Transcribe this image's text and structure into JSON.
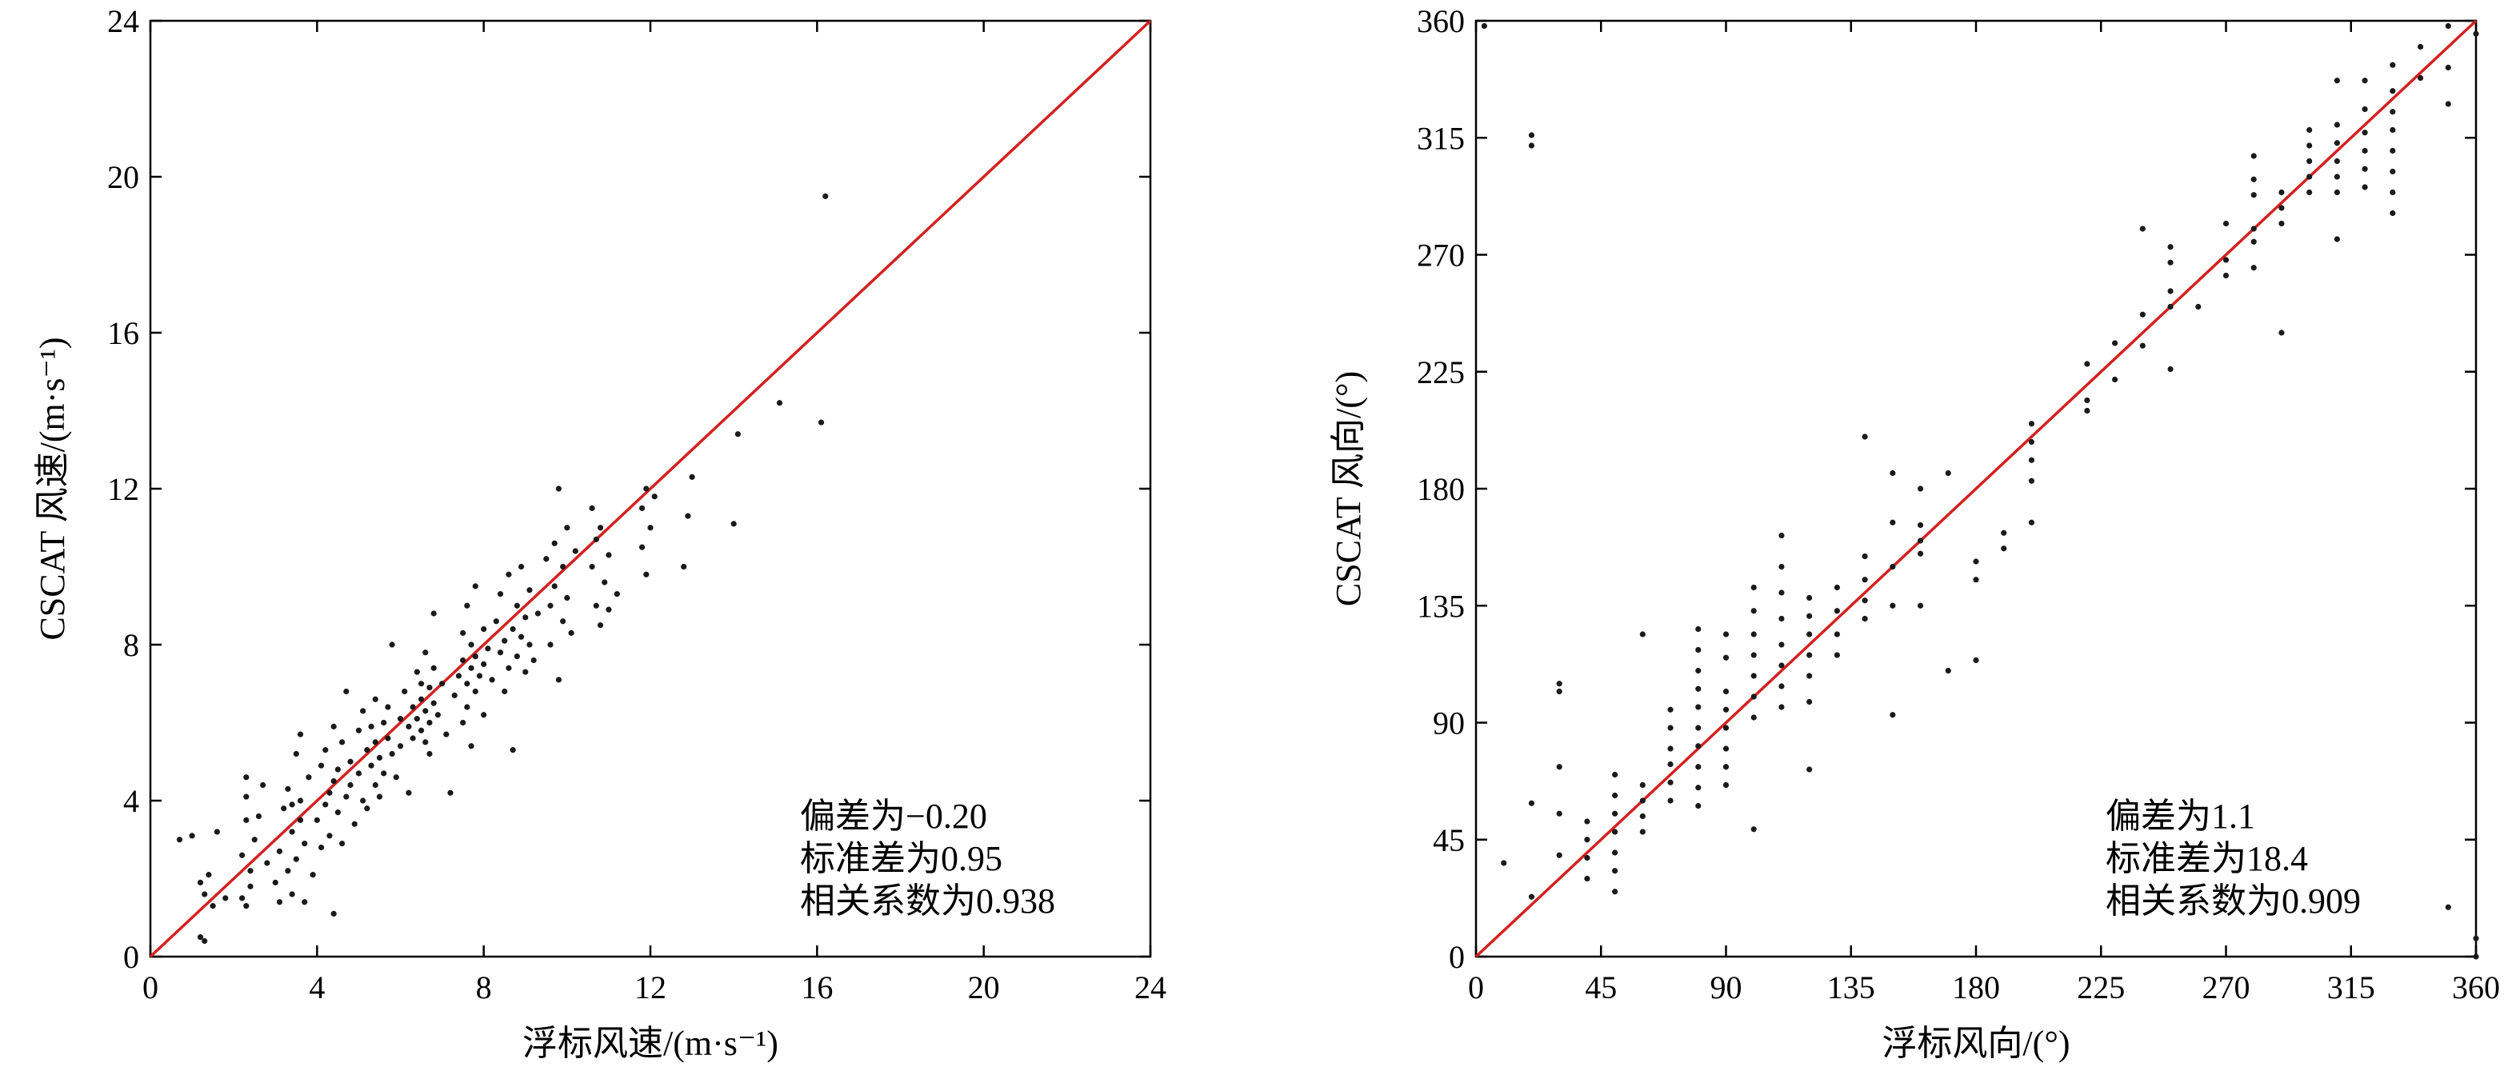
{
  "chart_data": [
    {
      "type": "scatter",
      "xlabel": "浮标风速/(m·s⁻¹)",
      "ylabel": "CSCAT 风速/(m·s⁻¹)",
      "xlim": [
        0,
        24
      ],
      "ylim": [
        0,
        24
      ],
      "x_ticks": [
        "0",
        "4",
        "8",
        "12",
        "16",
        "20",
        "24"
      ],
      "y_ticks": [
        "0",
        "4",
        "8",
        "12",
        "16",
        "20",
        "24"
      ],
      "reference_line": "y = x",
      "reference_line_color": "#d42020",
      "point_color": "#1a1a1a",
      "annotations": [
        "偏差为−0.20",
        "标准差为0.95",
        "相关系数为0.938"
      ],
      "points": [
        [
          0.7,
          3.0
        ],
        [
          1.0,
          3.1
        ],
        [
          1.2,
          1.9
        ],
        [
          1.2,
          0.5
        ],
        [
          1.3,
          1.6
        ],
        [
          1.3,
          0.4
        ],
        [
          1.4,
          2.1
        ],
        [
          1.5,
          1.3
        ],
        [
          1.6,
          3.2
        ],
        [
          1.8,
          1.5
        ],
        [
          2.2,
          2.6
        ],
        [
          2.2,
          1.5
        ],
        [
          2.3,
          3.5
        ],
        [
          2.3,
          4.1
        ],
        [
          2.3,
          4.6
        ],
        [
          2.3,
          1.3
        ],
        [
          2.4,
          2.2
        ],
        [
          2.4,
          1.8
        ],
        [
          2.5,
          3.0
        ],
        [
          2.6,
          3.6
        ],
        [
          2.7,
          4.4
        ],
        [
          2.8,
          2.4
        ],
        [
          3.0,
          1.9
        ],
        [
          3.1,
          2.7
        ],
        [
          3.1,
          1.4
        ],
        [
          3.2,
          3.8
        ],
        [
          3.3,
          4.3
        ],
        [
          3.3,
          2.2
        ],
        [
          3.4,
          3.2
        ],
        [
          3.4,
          1.6
        ],
        [
          3.4,
          3.9
        ],
        [
          3.5,
          5.2
        ],
        [
          3.5,
          2.5
        ],
        [
          3.6,
          4.0
        ],
        [
          3.6,
          3.5
        ],
        [
          3.6,
          5.7
        ],
        [
          3.7,
          2.9
        ],
        [
          3.7,
          1.4
        ],
        [
          3.8,
          4.6
        ],
        [
          3.9,
          2.1
        ],
        [
          4.0,
          3.5
        ],
        [
          4.1,
          4.9
        ],
        [
          4.1,
          2.8
        ],
        [
          4.2,
          3.9
        ],
        [
          4.2,
          5.3
        ],
        [
          4.3,
          4.2
        ],
        [
          4.3,
          3.1
        ],
        [
          4.4,
          4.5
        ],
        [
          4.4,
          1.1
        ],
        [
          4.4,
          5.9
        ],
        [
          4.5,
          3.7
        ],
        [
          4.5,
          4.8
        ],
        [
          4.6,
          5.5
        ],
        [
          4.6,
          2.9
        ],
        [
          4.7,
          4.1
        ],
        [
          4.7,
          6.8
        ],
        [
          4.8,
          5.0
        ],
        [
          4.8,
          4.4
        ],
        [
          4.9,
          3.4
        ],
        [
          5.0,
          5.8
        ],
        [
          5.0,
          4.7
        ],
        [
          5.1,
          4.0
        ],
        [
          5.1,
          6.3
        ],
        [
          5.2,
          5.3
        ],
        [
          5.2,
          3.8
        ],
        [
          5.3,
          4.9
        ],
        [
          5.3,
          5.9
        ],
        [
          5.4,
          4.4
        ],
        [
          5.4,
          6.6
        ],
        [
          5.4,
          5.5
        ],
        [
          5.5,
          4.1
        ],
        [
          5.5,
          5.1
        ],
        [
          5.6,
          6.0
        ],
        [
          5.6,
          4.7
        ],
        [
          5.7,
          5.6
        ],
        [
          5.7,
          6.4
        ],
        [
          5.8,
          5.2
        ],
        [
          5.8,
          8.0
        ],
        [
          5.9,
          4.6
        ],
        [
          6.0,
          6.1
        ],
        [
          6.0,
          5.4
        ],
        [
          6.1,
          6.8
        ],
        [
          6.2,
          5.9
        ],
        [
          6.2,
          4.2
        ],
        [
          6.3,
          6.4
        ],
        [
          6.3,
          5.6
        ],
        [
          6.4,
          7.3
        ],
        [
          6.4,
          6.1
        ],
        [
          6.5,
          5.8
        ],
        [
          6.5,
          6.6
        ],
        [
          6.5,
          7.0
        ],
        [
          6.6,
          5.5
        ],
        [
          6.6,
          6.3
        ],
        [
          6.6,
          7.8
        ],
        [
          6.7,
          6.0
        ],
        [
          6.7,
          6.9
        ],
        [
          6.7,
          5.2
        ],
        [
          6.8,
          6.5
        ],
        [
          6.8,
          7.4
        ],
        [
          6.8,
          8.8
        ],
        [
          6.9,
          6.2
        ],
        [
          7.0,
          7.0
        ],
        [
          7.1,
          5.7
        ],
        [
          7.2,
          4.2
        ],
        [
          7.3,
          6.7
        ],
        [
          7.4,
          7.2
        ],
        [
          7.5,
          6.0
        ],
        [
          7.5,
          7.6
        ],
        [
          7.5,
          8.3
        ],
        [
          7.6,
          7.0
        ],
        [
          7.6,
          6.4
        ],
        [
          7.6,
          9.0
        ],
        [
          7.7,
          7.4
        ],
        [
          7.7,
          8.0
        ],
        [
          7.7,
          5.4
        ],
        [
          7.8,
          7.7
        ],
        [
          7.8,
          6.8
        ],
        [
          7.8,
          9.5
        ],
        [
          7.9,
          7.2
        ],
        [
          8.0,
          8.4
        ],
        [
          8.0,
          7.5
        ],
        [
          8.0,
          6.2
        ],
        [
          8.1,
          7.9
        ],
        [
          8.2,
          7.1
        ],
        [
          8.3,
          8.6
        ],
        [
          8.4,
          7.8
        ],
        [
          8.4,
          9.3
        ],
        [
          8.5,
          6.8
        ],
        [
          8.5,
          8.1
        ],
        [
          8.6,
          9.8
        ],
        [
          8.6,
          7.4
        ],
        [
          8.7,
          8.4
        ],
        [
          8.7,
          5.3
        ],
        [
          8.8,
          9.0
        ],
        [
          8.8,
          7.7
        ],
        [
          8.9,
          8.2
        ],
        [
          8.9,
          10.0
        ],
        [
          9.0,
          8.7
        ],
        [
          9.0,
          7.3
        ],
        [
          9.1,
          9.4
        ],
        [
          9.1,
          8.0
        ],
        [
          9.2,
          7.6
        ],
        [
          9.3,
          8.8
        ],
        [
          9.5,
          10.2
        ],
        [
          9.6,
          9.0
        ],
        [
          9.6,
          8.0
        ],
        [
          9.7,
          10.6
        ],
        [
          9.7,
          9.5
        ],
        [
          9.8,
          12.0
        ],
        [
          9.8,
          7.1
        ],
        [
          9.9,
          8.6
        ],
        [
          9.9,
          10.0
        ],
        [
          10.0,
          9.2
        ],
        [
          10.0,
          11.0
        ],
        [
          10.1,
          8.3
        ],
        [
          10.2,
          10.4
        ],
        [
          10.6,
          10.0
        ],
        [
          10.6,
          11.5
        ],
        [
          10.7,
          9.0
        ],
        [
          10.7,
          10.7
        ],
        [
          10.8,
          8.5
        ],
        [
          10.8,
          11.0
        ],
        [
          10.9,
          9.6
        ],
        [
          11.0,
          10.3
        ],
        [
          11.0,
          8.9
        ],
        [
          11.2,
          9.3
        ],
        [
          11.8,
          11.5
        ],
        [
          11.8,
          10.5
        ],
        [
          11.9,
          9.8
        ],
        [
          11.9,
          12.0
        ],
        [
          12.0,
          11.0
        ],
        [
          12.1,
          11.8
        ],
        [
          12.8,
          10.0
        ],
        [
          12.9,
          11.3
        ],
        [
          13.0,
          12.3
        ],
        [
          14.0,
          11.1
        ],
        [
          14.1,
          13.4
        ],
        [
          15.1,
          14.2
        ],
        [
          16.1,
          13.7
        ],
        [
          16.2,
          19.5
        ]
      ]
    },
    {
      "type": "scatter",
      "xlabel": "浮标风向/(°)",
      "ylabel": "CSCAT 风向/(°)",
      "xlim": [
        0,
        360
      ],
      "ylim": [
        0,
        360
      ],
      "x_ticks": [
        "0",
        "45",
        "90",
        "135",
        "180",
        "225",
        "270",
        "315",
        "360"
      ],
      "y_ticks": [
        "0",
        "45",
        "90",
        "135",
        "180",
        "225",
        "270",
        "315",
        "360"
      ],
      "reference_line": "y = x",
      "reference_line_color": "#d42020",
      "point_color": "#1a1a1a",
      "annotations": [
        "偏差为1.1",
        "标准差为18.4",
        "相关系数为0.909"
      ],
      "points": [
        [
          3,
          358
        ],
        [
          10,
          36
        ],
        [
          20,
          316
        ],
        [
          20,
          312
        ],
        [
          20,
          59
        ],
        [
          20,
          23
        ],
        [
          30,
          105
        ],
        [
          30,
          102
        ],
        [
          30,
          73
        ],
        [
          30,
          55
        ],
        [
          30,
          39
        ],
        [
          40,
          52
        ],
        [
          40,
          45
        ],
        [
          40,
          38
        ],
        [
          40,
          30
        ],
        [
          50,
          70
        ],
        [
          50,
          62
        ],
        [
          50,
          55
        ],
        [
          50,
          48
        ],
        [
          50,
          40
        ],
        [
          50,
          33
        ],
        [
          50,
          25
        ],
        [
          60,
          124
        ],
        [
          60,
          66
        ],
        [
          60,
          60
        ],
        [
          60,
          54
        ],
        [
          60,
          48
        ],
        [
          70,
          95
        ],
        [
          70,
          88
        ],
        [
          70,
          80
        ],
        [
          70,
          74
        ],
        [
          70,
          67
        ],
        [
          70,
          60
        ],
        [
          80,
          126
        ],
        [
          80,
          118
        ],
        [
          80,
          110
        ],
        [
          80,
          103
        ],
        [
          80,
          96
        ],
        [
          80,
          88
        ],
        [
          80,
          81
        ],
        [
          80,
          73
        ],
        [
          80,
          65
        ],
        [
          80,
          58
        ],
        [
          90,
          124
        ],
        [
          90,
          115
        ],
        [
          90,
          102
        ],
        [
          90,
          95
        ],
        [
          90,
          88
        ],
        [
          90,
          80
        ],
        [
          90,
          73
        ],
        [
          90,
          66
        ],
        [
          100,
          142
        ],
        [
          100,
          133
        ],
        [
          100,
          124
        ],
        [
          100,
          116
        ],
        [
          100,
          108
        ],
        [
          100,
          100
        ],
        [
          100,
          92
        ],
        [
          100,
          49
        ],
        [
          110,
          162
        ],
        [
          110,
          150
        ],
        [
          110,
          140
        ],
        [
          110,
          130
        ],
        [
          110,
          120
        ],
        [
          110,
          112
        ],
        [
          110,
          104
        ],
        [
          110,
          96
        ],
        [
          120,
          138
        ],
        [
          120,
          131
        ],
        [
          120,
          124
        ],
        [
          120,
          116
        ],
        [
          120,
          108
        ],
        [
          120,
          98
        ],
        [
          120,
          72
        ],
        [
          130,
          142
        ],
        [
          130,
          133
        ],
        [
          130,
          124
        ],
        [
          130,
          116
        ],
        [
          140,
          200
        ],
        [
          140,
          154
        ],
        [
          140,
          145
        ],
        [
          140,
          137
        ],
        [
          140,
          130
        ],
        [
          150,
          186
        ],
        [
          150,
          167
        ],
        [
          150,
          150
        ],
        [
          150,
          135
        ],
        [
          150,
          93
        ],
        [
          160,
          180
        ],
        [
          160,
          166
        ],
        [
          160,
          160
        ],
        [
          160,
          155
        ],
        [
          160,
          135
        ],
        [
          170,
          186
        ],
        [
          170,
          110
        ],
        [
          180,
          152
        ],
        [
          180,
          145
        ],
        [
          180,
          114
        ],
        [
          190,
          163
        ],
        [
          190,
          157
        ],
        [
          200,
          205
        ],
        [
          200,
          198
        ],
        [
          200,
          191
        ],
        [
          200,
          183
        ],
        [
          200,
          167
        ],
        [
          220,
          228
        ],
        [
          220,
          214
        ],
        [
          220,
          210
        ],
        [
          230,
          236
        ],
        [
          230,
          222
        ],
        [
          240,
          280
        ],
        [
          240,
          247
        ],
        [
          240,
          235
        ],
        [
          250,
          273
        ],
        [
          250,
          267
        ],
        [
          250,
          256
        ],
        [
          250,
          250
        ],
        [
          250,
          226
        ],
        [
          260,
          250
        ],
        [
          270,
          282
        ],
        [
          270,
          268
        ],
        [
          270,
          262
        ],
        [
          280,
          308
        ],
        [
          280,
          299
        ],
        [
          280,
          293
        ],
        [
          280,
          280
        ],
        [
          280,
          275
        ],
        [
          280,
          265
        ],
        [
          290,
          294
        ],
        [
          290,
          288
        ],
        [
          290,
          282
        ],
        [
          290,
          240
        ],
        [
          300,
          318
        ],
        [
          300,
          312
        ],
        [
          300,
          306
        ],
        [
          300,
          300
        ],
        [
          300,
          294
        ],
        [
          310,
          337
        ],
        [
          310,
          320
        ],
        [
          310,
          313
        ],
        [
          310,
          306
        ],
        [
          310,
          300
        ],
        [
          310,
          294
        ],
        [
          310,
          276
        ],
        [
          320,
          337
        ],
        [
          320,
          326
        ],
        [
          320,
          317
        ],
        [
          320,
          310
        ],
        [
          320,
          303
        ],
        [
          320,
          296
        ],
        [
          330,
          343
        ],
        [
          330,
          333
        ],
        [
          330,
          325
        ],
        [
          330,
          318
        ],
        [
          330,
          310
        ],
        [
          330,
          302
        ],
        [
          330,
          294
        ],
        [
          330,
          286
        ],
        [
          340,
          350
        ],
        [
          340,
          338
        ],
        [
          350,
          358
        ],
        [
          350,
          342
        ],
        [
          350,
          328
        ],
        [
          350,
          19
        ],
        [
          360,
          355
        ],
        [
          360,
          7
        ],
        [
          360,
          0
        ]
      ]
    }
  ]
}
